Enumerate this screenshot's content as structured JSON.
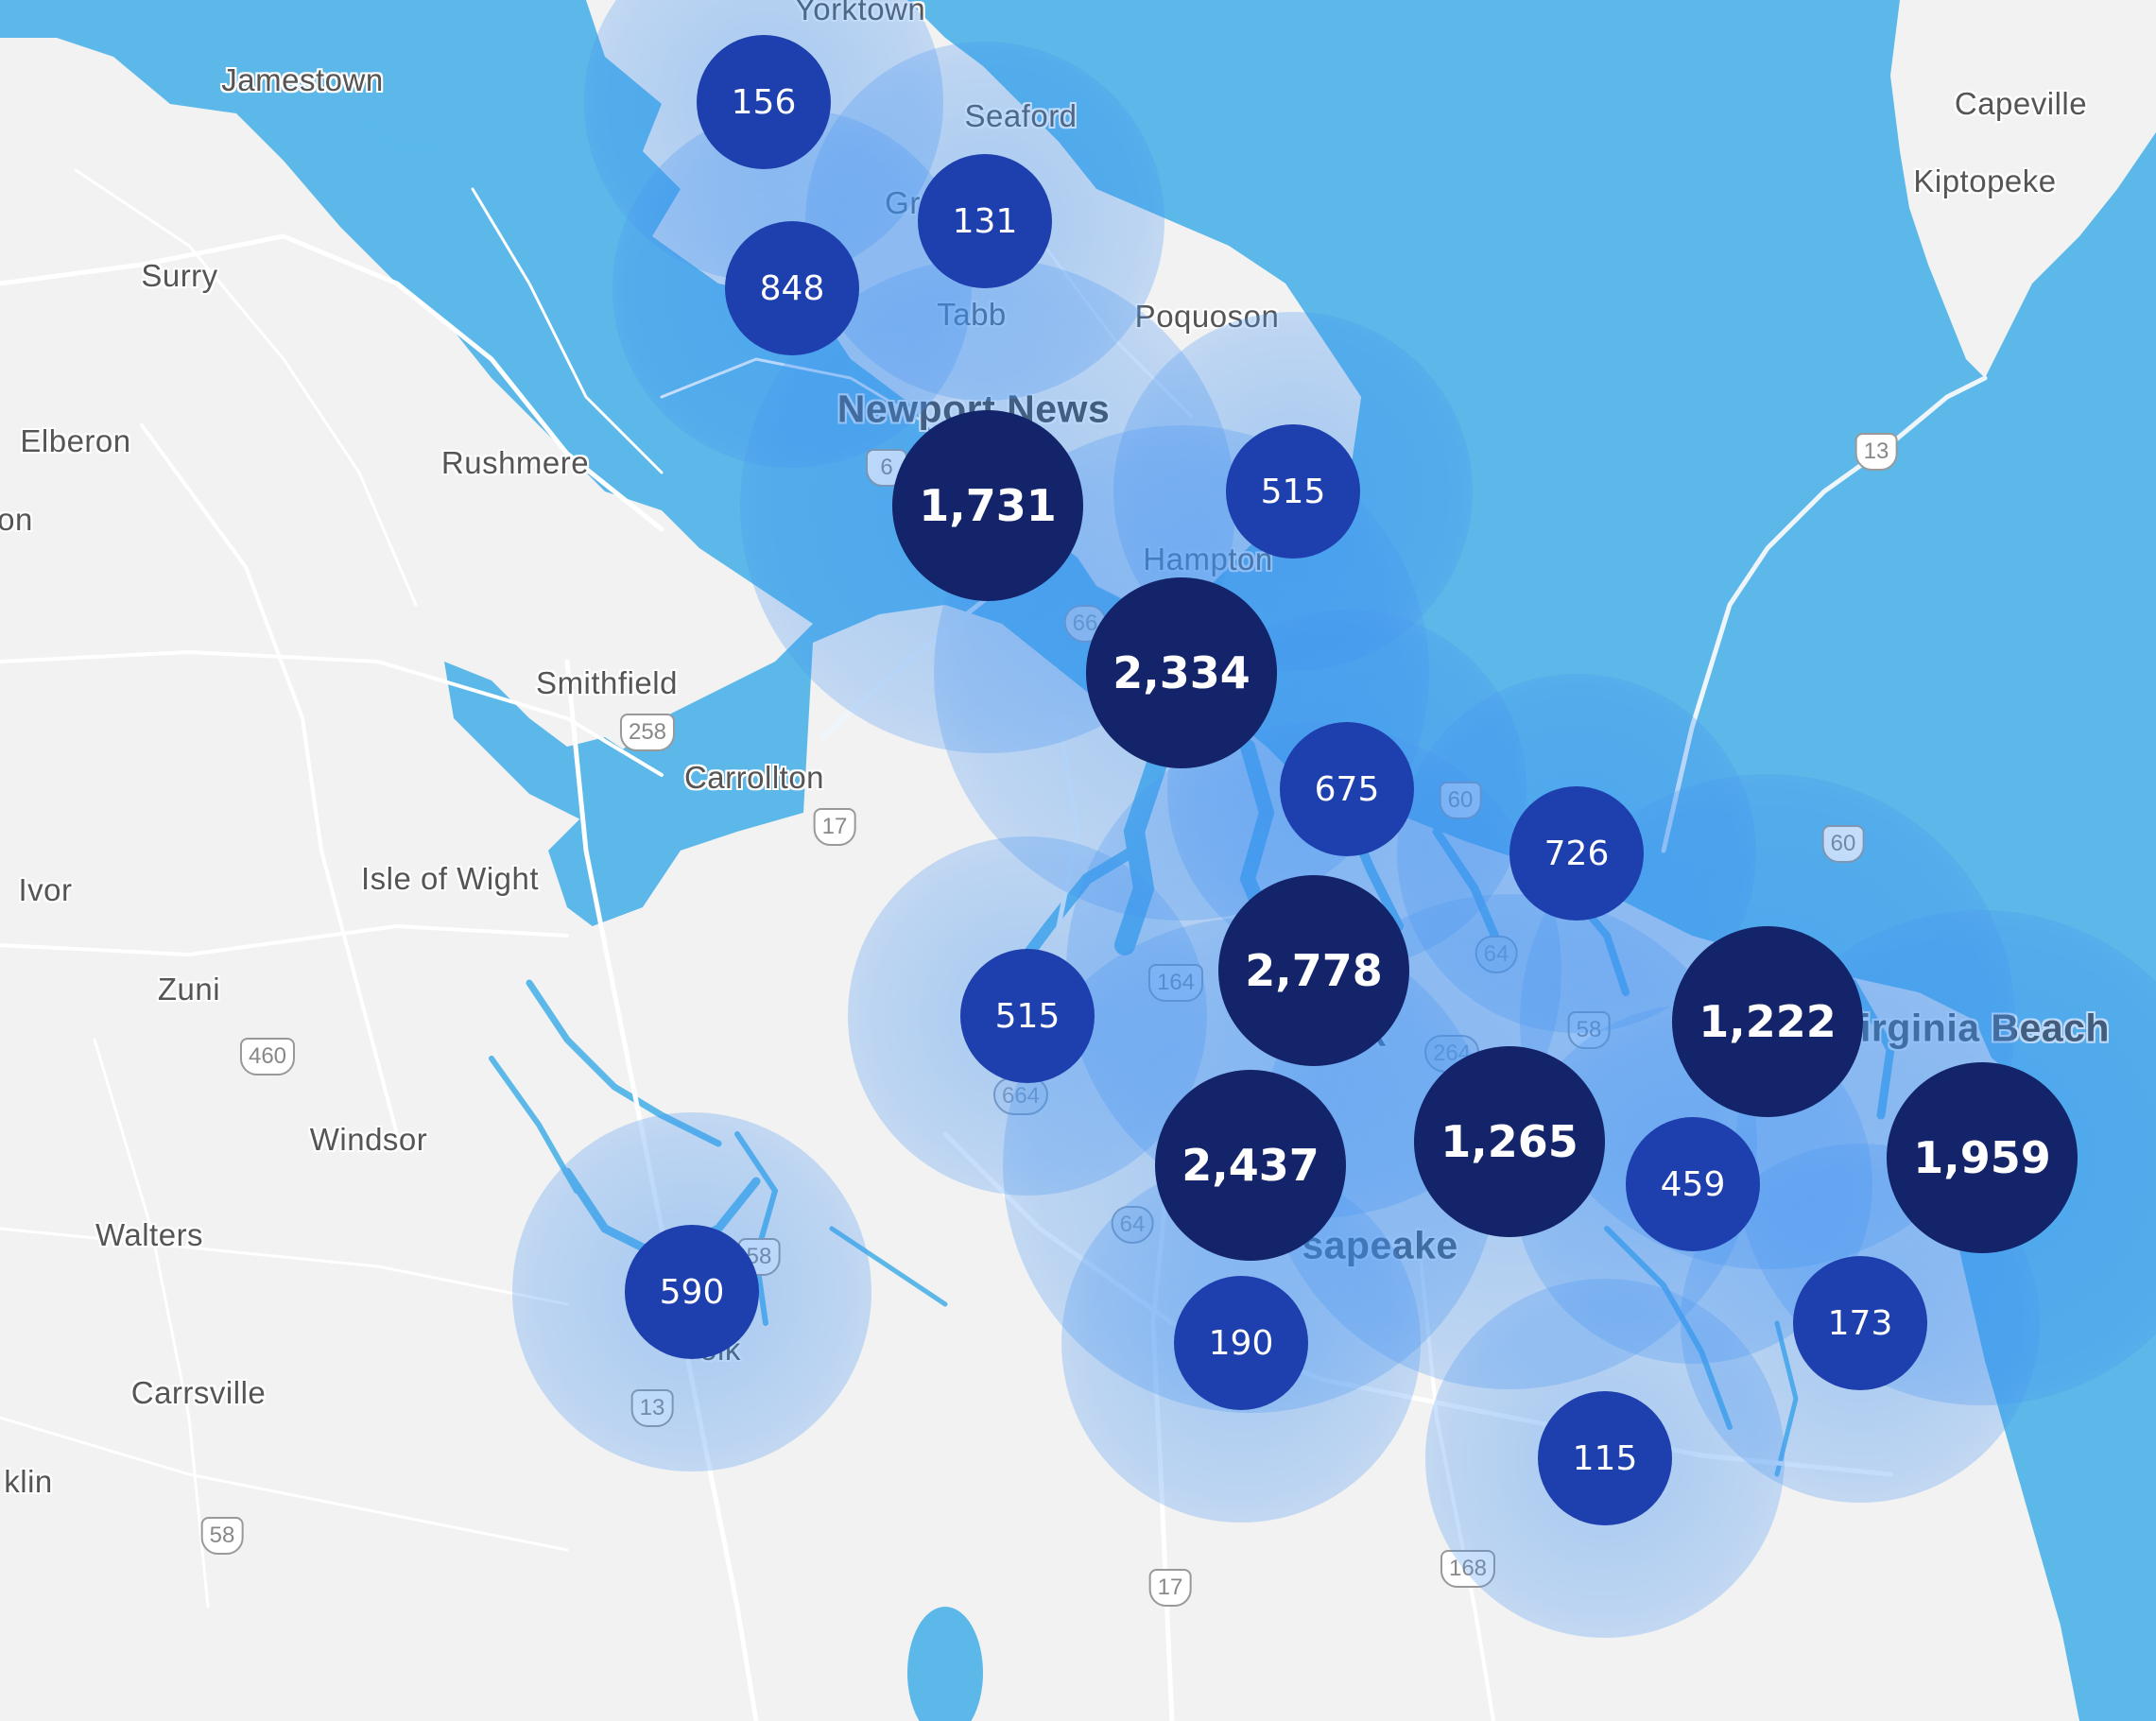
{
  "colors": {
    "land": "#f2f2f2",
    "water": "#5bb8e9",
    "road": "#ffffff",
    "cluster_small": "#1e3fae",
    "cluster_large": "#13246a",
    "halo": "#3d8ff0"
  },
  "places": [
    {
      "name": "Yorktown",
      "size": "normal"
    },
    {
      "name": "Jamestown",
      "size": "normal"
    },
    {
      "name": "Seaford",
      "size": "normal"
    },
    {
      "name": "Capeville",
      "size": "normal"
    },
    {
      "name": "Kiptopeke",
      "size": "normal"
    },
    {
      "name": "Surry",
      "size": "normal"
    },
    {
      "name": "Gr",
      "size": "normal"
    },
    {
      "name": "Tabb",
      "size": "normal"
    },
    {
      "name": "Poquoson",
      "size": "normal"
    },
    {
      "name": "Newport News",
      "size": "big"
    },
    {
      "name": "Elberon",
      "size": "normal"
    },
    {
      "name": "Rushmere",
      "size": "normal"
    },
    {
      "name": "on",
      "size": "normal"
    },
    {
      "name": "Hampton",
      "size": "normal"
    },
    {
      "name": "Smithfield",
      "size": "normal"
    },
    {
      "name": "Carrollton",
      "size": "normal"
    },
    {
      "name": "Ivor",
      "size": "normal"
    },
    {
      "name": "Isle of Wight",
      "size": "normal"
    },
    {
      "name": "Zuni",
      "size": "normal"
    },
    {
      "name": "irginia Beach",
      "size": "big"
    },
    {
      "name": "k",
      "size": "big"
    },
    {
      "name": "Windsor",
      "size": "normal"
    },
    {
      "name": "Walters",
      "size": "normal"
    },
    {
      "name": "sapeake",
      "size": "big"
    },
    {
      "name": "olk",
      "size": "normal"
    },
    {
      "name": "Carrsville",
      "size": "normal"
    },
    {
      "name": "klin",
      "size": "normal"
    }
  ],
  "shields": [
    {
      "label": "13",
      "type": "us"
    },
    {
      "label": "258",
      "type": "us"
    },
    {
      "label": "17",
      "type": "us"
    },
    {
      "label": "60",
      "type": "us"
    },
    {
      "label": "60",
      "type": "us"
    },
    {
      "label": "64",
      "type": "interstate"
    },
    {
      "label": "164",
      "type": "us"
    },
    {
      "label": "58",
      "type": "us"
    },
    {
      "label": "264",
      "type": "interstate"
    },
    {
      "label": "664",
      "type": "interstate"
    },
    {
      "label": "66",
      "type": "interstate"
    },
    {
      "label": "64",
      "type": "interstate"
    },
    {
      "label": "460",
      "type": "us"
    },
    {
      "label": "58",
      "type": "us"
    },
    {
      "label": "13",
      "type": "us"
    },
    {
      "label": "58",
      "type": "us"
    },
    {
      "label": "17",
      "type": "us"
    },
    {
      "label": "168",
      "type": "us"
    },
    {
      "label": "6",
      "type": "us"
    }
  ],
  "clusters": [
    {
      "count": "156",
      "tier": "small"
    },
    {
      "count": "131",
      "tier": "small"
    },
    {
      "count": "848",
      "tier": "small"
    },
    {
      "count": "1,731",
      "tier": "large"
    },
    {
      "count": "515",
      "tier": "small"
    },
    {
      "count": "2,334",
      "tier": "large"
    },
    {
      "count": "675",
      "tier": "small"
    },
    {
      "count": "726",
      "tier": "small"
    },
    {
      "count": "2,778",
      "tier": "large"
    },
    {
      "count": "515",
      "tier": "small"
    },
    {
      "count": "1,222",
      "tier": "large"
    },
    {
      "count": "2,437",
      "tier": "large"
    },
    {
      "count": "1,265",
      "tier": "large"
    },
    {
      "count": "459",
      "tier": "small"
    },
    {
      "count": "1,959",
      "tier": "large"
    },
    {
      "count": "590",
      "tier": "small"
    },
    {
      "count": "190",
      "tier": "small"
    },
    {
      "count": "173",
      "tier": "small"
    },
    {
      "count": "115",
      "tier": "small"
    }
  ]
}
